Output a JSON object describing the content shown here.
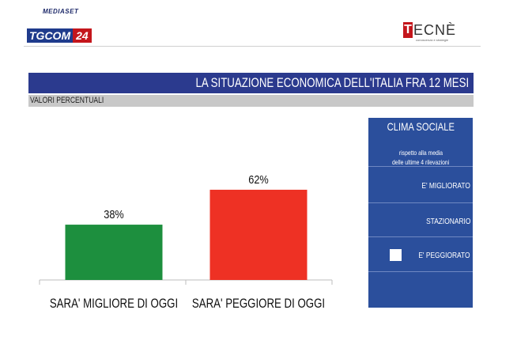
{
  "header": {
    "mediaset": "MEDIASET",
    "tgcom_a": "TGCOM",
    "tgcom_b": "24",
    "tecne_mark": "T",
    "tecne_text": "ECNÈ",
    "tecne_sub": "conoscenza e strategie"
  },
  "colors": {
    "title_bar": "#2b3a8e",
    "subtitle_bar": "#c8c8c8",
    "panel": "#2b4f9c",
    "bar_better": "#1d8f3e",
    "bar_worse": "#ee3124"
  },
  "chart_data": {
    "type": "bar",
    "title": "LA SITUAZIONE ECONOMICA DELL'ITALIA FRA 12 MESI",
    "subtitle": "VALORI PERCENTUALI",
    "categories": [
      "SARA' MIGLIORE DI OGGI",
      "SARA' PEGGIORE DI OGGI"
    ],
    "values": [
      38,
      62
    ],
    "value_labels": [
      "38%",
      "62%"
    ],
    "colors": [
      "#1d8f3e",
      "#ee3124"
    ],
    "ylim": [
      0,
      100
    ],
    "grid": false,
    "legend": "none"
  },
  "panel": {
    "title": "CLIMA SOCIALE",
    "subtitle_line1": "rispetto alla media",
    "subtitle_line2": "delle ultime 4 rilevazioni",
    "options": [
      "E' MIGLIORATO",
      "STAZIONARIO",
      "E' PEGGIORATO"
    ],
    "selected": "E' PEGGIORATO"
  }
}
